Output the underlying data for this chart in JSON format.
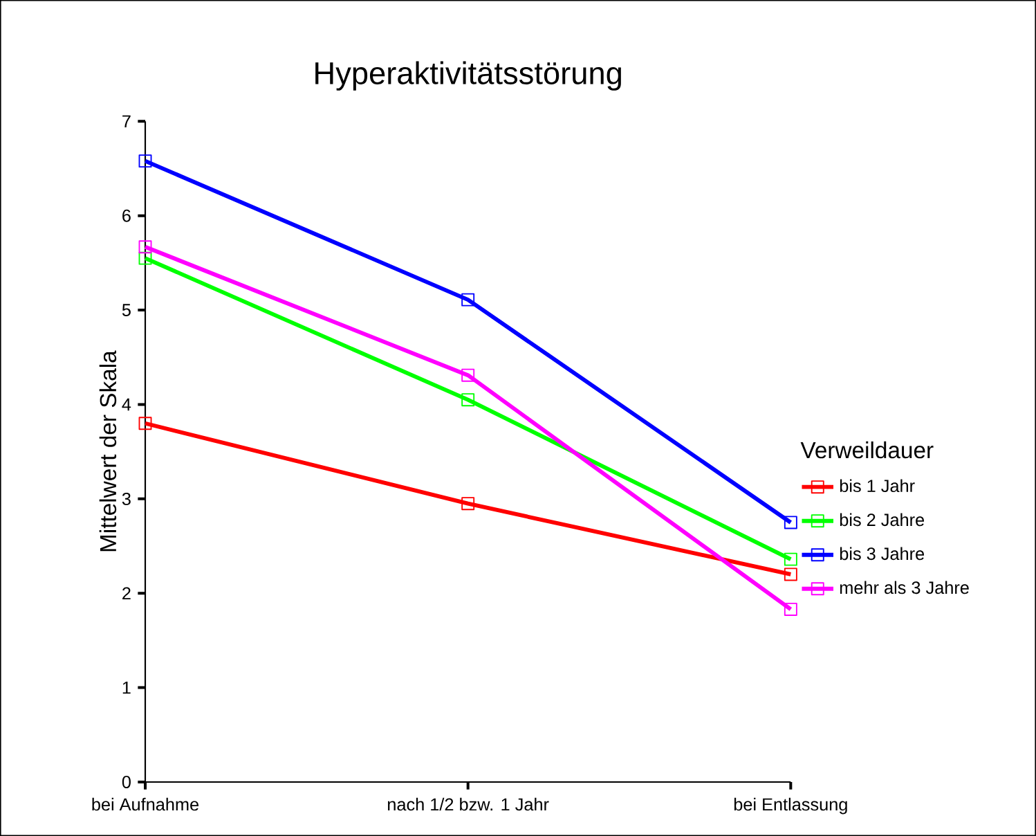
{
  "chart_data": {
    "type": "line",
    "title": "Hyperaktivitätsstörung",
    "ylabel": "Mittelwert der Skala",
    "legend_title": "Verweildauer",
    "categories": [
      "bei Aufnahme",
      "nach 1/2 bzw. 1 Jahr",
      "bei Entlassung"
    ],
    "series": [
      {
        "name": "bis 1 Jahr",
        "color": "#ff0000",
        "values": [
          3.8,
          2.95,
          2.2
        ]
      },
      {
        "name": "bis 2 Jahre",
        "color": "#00ff00",
        "values": [
          5.55,
          4.05,
          2.36
        ]
      },
      {
        "name": "bis 3 Jahre",
        "color": "#0000ff",
        "values": [
          6.58,
          5.11,
          2.75
        ]
      },
      {
        "name": "mehr als 3 Jahre",
        "color": "#ff00ff",
        "values": [
          5.67,
          4.31,
          1.83
        ]
      }
    ],
    "ylim": [
      0,
      7
    ],
    "yticks": [
      0,
      1,
      2,
      3,
      4,
      5,
      6,
      7
    ],
    "grid": false,
    "legend": "right",
    "marker": "square",
    "line_style": "solid"
  }
}
